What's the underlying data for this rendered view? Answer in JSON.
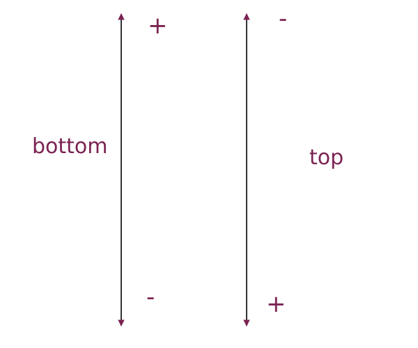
{
  "colors": {
    "accent": "#7b2352",
    "line": "#000000",
    "background": "#ffffff"
  },
  "left_axis": {
    "side_label": "bottom",
    "top_sign": "+",
    "bottom_sign": "-"
  },
  "right_axis": {
    "side_label": "top",
    "top_sign": "-",
    "bottom_sign": "+"
  }
}
